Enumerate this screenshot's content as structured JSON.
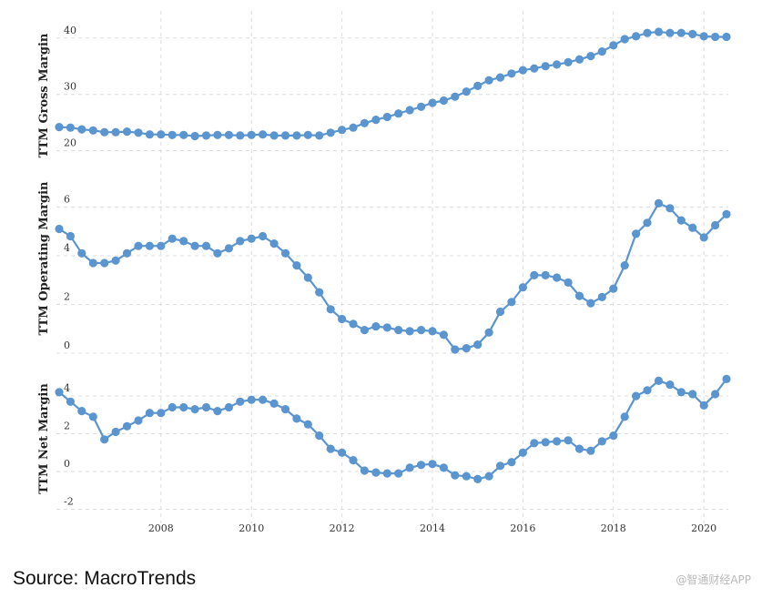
{
  "source": "Source: MacroTrends",
  "watermark": "@智通财经APP",
  "series_color": "#5b95d0",
  "chart_data": [
    {
      "type": "line",
      "title": "",
      "ylabel": "TTM Gross Margin",
      "ylim": [
        18,
        44
      ],
      "yticks": [
        20,
        30,
        40
      ],
      "x": [
        2005.75,
        2006.0,
        2006.25,
        2006.5,
        2006.75,
        2007.0,
        2007.25,
        2007.5,
        2007.75,
        2008.0,
        2008.25,
        2008.5,
        2008.75,
        2009.0,
        2009.25,
        2009.5,
        2009.75,
        2010.0,
        2010.25,
        2010.5,
        2010.75,
        2011.0,
        2011.25,
        2011.5,
        2011.75,
        2012.0,
        2012.25,
        2012.5,
        2012.75,
        2013.0,
        2013.25,
        2013.5,
        2013.75,
        2014.0,
        2014.25,
        2014.5,
        2014.75,
        2015.0,
        2015.25,
        2015.5,
        2015.75,
        2016.0,
        2016.25,
        2016.5,
        2016.75,
        2017.0,
        2017.25,
        2017.5,
        2017.75,
        2018.0,
        2018.25,
        2018.5,
        2018.75,
        2019.0,
        2019.25,
        2019.5,
        2019.75,
        2020.0,
        2020.25,
        2020.5
      ],
      "values": [
        24.2,
        24.1,
        23.8,
        23.6,
        23.3,
        23.3,
        23.4,
        23.2,
        22.9,
        22.9,
        22.8,
        22.8,
        22.6,
        22.7,
        22.8,
        22.8,
        22.7,
        22.8,
        22.9,
        22.7,
        22.7,
        22.7,
        22.8,
        22.7,
        23.2,
        23.7,
        24.1,
        24.9,
        25.5,
        26.0,
        26.6,
        27.2,
        27.8,
        28.5,
        28.9,
        29.6,
        30.5,
        31.5,
        32.5,
        33.0,
        33.7,
        34.3,
        34.6,
        35.0,
        35.3,
        35.7,
        36.2,
        36.8,
        37.6,
        38.7,
        39.8,
        40.3,
        40.9,
        41.1,
        40.9,
        40.9,
        40.7,
        40.3,
        40.2,
        40.2
      ]
    },
    {
      "type": "line",
      "title": "",
      "ylabel": "TTM Operating Margin",
      "ylim": [
        0,
        6.8
      ],
      "yticks": [
        0,
        2,
        4,
        6
      ],
      "x": [
        2005.75,
        2006.0,
        2006.25,
        2006.5,
        2006.75,
        2007.0,
        2007.25,
        2007.5,
        2007.75,
        2008.0,
        2008.25,
        2008.5,
        2008.75,
        2009.0,
        2009.25,
        2009.5,
        2009.75,
        2010.0,
        2010.25,
        2010.5,
        2010.75,
        2011.0,
        2011.25,
        2011.5,
        2011.75,
        2012.0,
        2012.25,
        2012.5,
        2012.75,
        2013.0,
        2013.25,
        2013.5,
        2013.75,
        2014.0,
        2014.25,
        2014.5,
        2014.75,
        2015.0,
        2015.25,
        2015.5,
        2015.75,
        2016.0,
        2016.25,
        2016.5,
        2016.75,
        2017.0,
        2017.25,
        2017.5,
        2017.75,
        2018.0,
        2018.25,
        2018.5,
        2018.75,
        2019.0,
        2019.25,
        2019.5,
        2019.75,
        2020.0,
        2020.25,
        2020.5
      ],
      "values": [
        5.1,
        4.8,
        4.1,
        3.7,
        3.7,
        3.8,
        4.1,
        4.4,
        4.4,
        4.4,
        4.7,
        4.6,
        4.4,
        4.4,
        4.1,
        4.3,
        4.6,
        4.7,
        4.8,
        4.5,
        4.1,
        3.6,
        3.1,
        2.5,
        1.8,
        1.4,
        1.2,
        0.95,
        1.1,
        1.05,
        0.95,
        0.9,
        0.95,
        0.9,
        0.75,
        0.15,
        0.2,
        0.35,
        0.85,
        1.7,
        2.1,
        2.7,
        3.2,
        3.2,
        3.1,
        2.9,
        2.35,
        2.05,
        2.3,
        2.65,
        3.6,
        4.9,
        5.35,
        6.15,
        5.95,
        5.45,
        5.15,
        4.75,
        5.25,
        5.7
      ]
    },
    {
      "type": "line",
      "title": "",
      "ylabel": "TTM Net Margin",
      "ylim": [
        -2.6,
        5.4
      ],
      "yticks": [
        -2,
        0,
        2,
        4
      ],
      "xticks": [
        2008,
        2010,
        2012,
        2014,
        2016,
        2018,
        2020
      ],
      "x": [
        2005.75,
        2006.0,
        2006.25,
        2006.5,
        2006.75,
        2007.0,
        2007.25,
        2007.5,
        2007.75,
        2008.0,
        2008.25,
        2008.5,
        2008.75,
        2009.0,
        2009.25,
        2009.5,
        2009.75,
        2010.0,
        2010.25,
        2010.5,
        2010.75,
        2011.0,
        2011.25,
        2011.5,
        2011.75,
        2012.0,
        2012.25,
        2012.5,
        2012.75,
        2013.0,
        2013.25,
        2013.5,
        2013.75,
        2014.0,
        2014.25,
        2014.5,
        2014.75,
        2015.0,
        2015.25,
        2015.5,
        2015.75,
        2016.0,
        2016.25,
        2016.5,
        2016.75,
        2017.0,
        2017.25,
        2017.5,
        2017.75,
        2018.0,
        2018.25,
        2018.5,
        2018.75,
        2019.0,
        2019.25,
        2019.5,
        2019.75,
        2020.0,
        2020.25,
        2020.5
      ],
      "values": [
        4.2,
        3.7,
        3.2,
        2.9,
        1.7,
        2.1,
        2.4,
        2.7,
        3.1,
        3.1,
        3.4,
        3.4,
        3.3,
        3.4,
        3.2,
        3.4,
        3.7,
        3.8,
        3.8,
        3.6,
        3.3,
        2.8,
        2.5,
        1.9,
        1.2,
        1.0,
        0.6,
        0.05,
        -0.05,
        -0.1,
        -0.1,
        0.2,
        0.35,
        0.4,
        0.2,
        -0.2,
        -0.25,
        -0.4,
        -0.25,
        0.3,
        0.5,
        1.0,
        1.5,
        1.55,
        1.6,
        1.65,
        1.2,
        1.1,
        1.6,
        1.9,
        2.9,
        4.0,
        4.3,
        4.8,
        4.6,
        4.2,
        4.1,
        3.5,
        4.1,
        4.9
      ]
    }
  ]
}
